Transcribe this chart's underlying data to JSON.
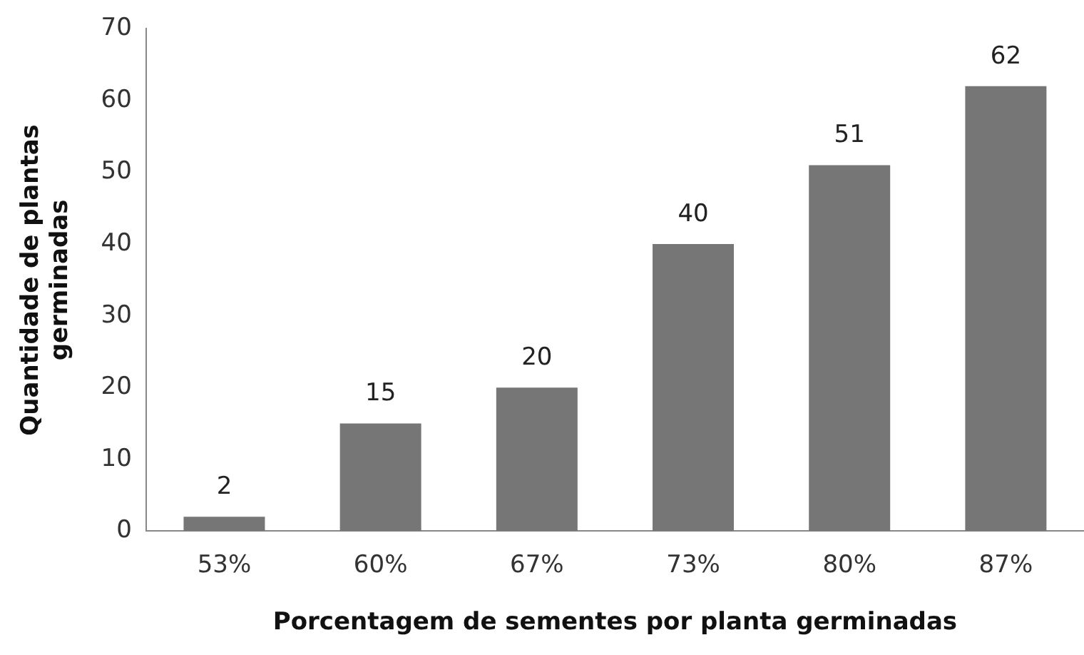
{
  "chart_data": {
    "type": "bar",
    "xlabel": "Porcentagem de sementes por planta germinadas",
    "ylabel": "Quantidade de plantas germinadas",
    "categories": [
      "53%",
      "60%",
      "67%",
      "73%",
      "80%",
      "87%"
    ],
    "values": [
      2,
      15,
      20,
      40,
      51,
      62
    ],
    "color": "#767676",
    "ylim": [
      0,
      70
    ],
    "yticks": [
      0,
      10,
      20,
      30,
      40,
      50,
      60,
      70
    ],
    "grid": false,
    "legend": false,
    "data_labels": true
  }
}
